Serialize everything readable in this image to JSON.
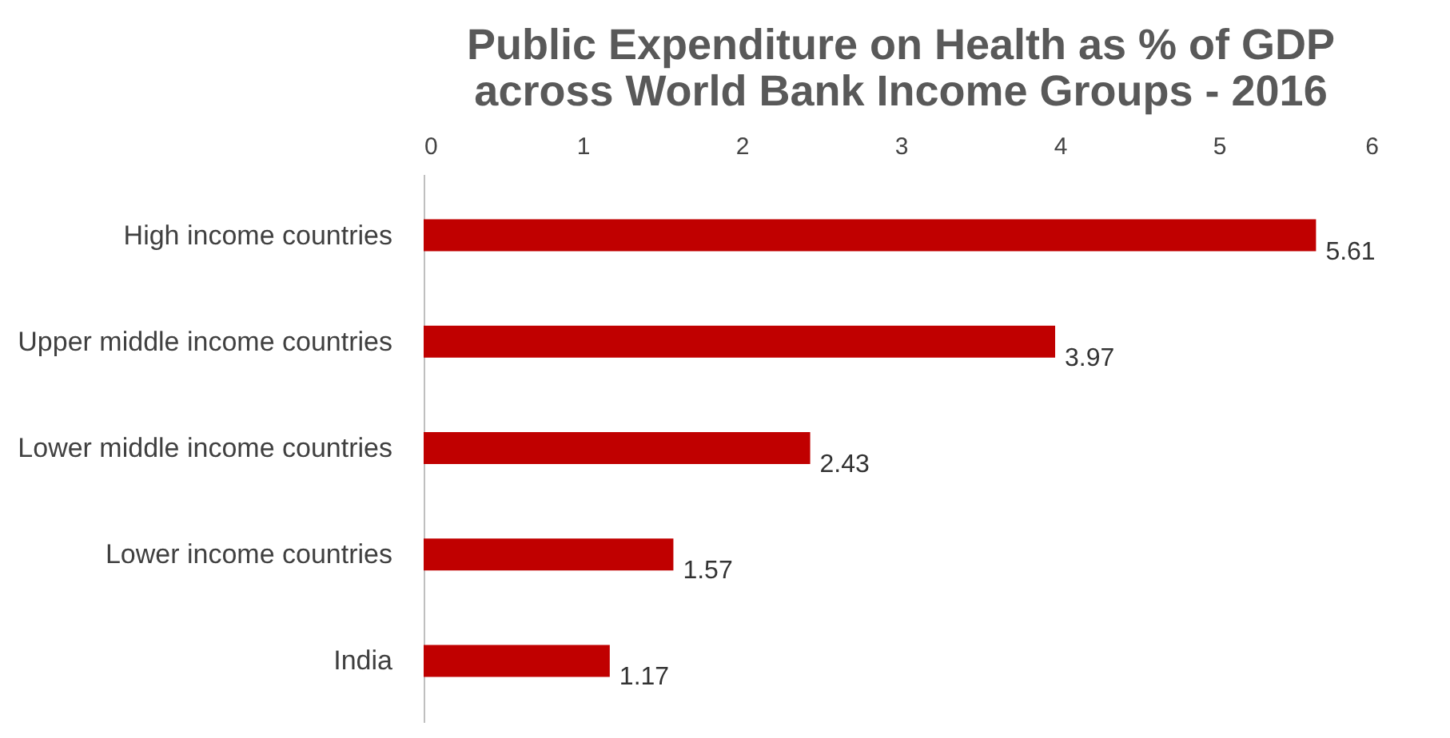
{
  "chart_data": {
    "type": "bar",
    "orientation": "horizontal",
    "title": "Public Expenditure on Health as % of GDP across World Bank Income Groups - 2016",
    "categories": [
      "High income countries",
      "Upper middle income countries",
      "Lower middle income countries",
      "Lower income countries",
      "India"
    ],
    "values": [
      5.61,
      3.97,
      2.43,
      1.57,
      1.17
    ],
    "color": "#c00000",
    "xlim": [
      0,
      6
    ],
    "xticks": [
      0,
      1,
      2,
      3,
      4,
      5,
      6
    ],
    "grid": false,
    "data_labels": true
  }
}
